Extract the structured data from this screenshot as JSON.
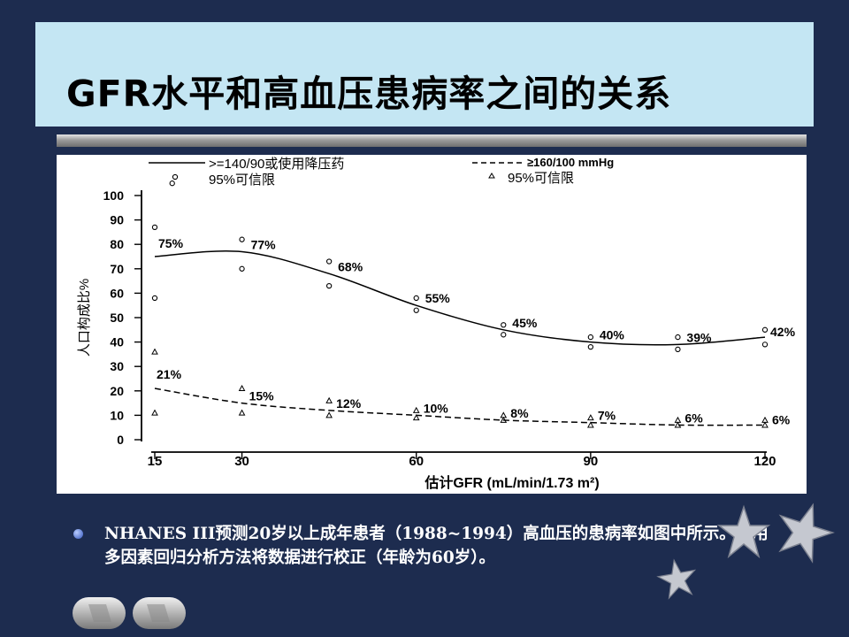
{
  "slide": {
    "title": "GFR水平和高血压患病率之间的关系",
    "bullet": "NHANES III预测20岁以上成年患者（1988~1994）高血压的患病率如图中所示。应用多因素回归分析方法将数据进行校正（年龄为60岁）。"
  },
  "chart_data": {
    "type": "line",
    "xlabel": "估计GFR (mL/min/1.73 m²)",
    "ylabel": "人口构成比%",
    "xticks": [
      15,
      30,
      60,
      90,
      120
    ],
    "yticks": [
      0,
      10,
      20,
      30,
      40,
      50,
      60,
      70,
      80,
      90,
      100
    ],
    "xlim": [
      15,
      120
    ],
    "ylim": [
      0,
      100
    ],
    "legend": [
      {
        "label": ">=140/90或使用降压药",
        "style": "solid"
      },
      {
        "label": "95%可信限",
        "marker": "circle"
      },
      {
        "label": "≥160/100 mmHg",
        "style": "dashed"
      },
      {
        "label": "95%可信限",
        "marker": "triangle"
      }
    ],
    "series": [
      {
        "name": ">=140/90或使用降压药",
        "style": "solid",
        "x": [
          15,
          30,
          45,
          60,
          75,
          90,
          105,
          120
        ],
        "y": [
          75,
          77,
          68,
          55,
          45,
          40,
          39,
          42
        ],
        "labels": [
          "75%",
          "77%",
          "68%",
          "55%",
          "45%",
          "40%",
          "39%",
          "42%"
        ],
        "ci_marker": "circle",
        "ci_upper": [
          87,
          82,
          73,
          58,
          47,
          42,
          42,
          45
        ],
        "ci_lower": [
          58,
          70,
          63,
          53,
          43,
          38,
          37,
          39
        ],
        "extra_points": [
          {
            "x": 18,
            "y": 105
          }
        ]
      },
      {
        "name": "≥160/100 mmHg",
        "style": "dashed",
        "x": [
          15,
          30,
          45,
          60,
          75,
          90,
          105,
          120
        ],
        "y": [
          21,
          15,
          12,
          10,
          8,
          7,
          6,
          6
        ],
        "labels": [
          "21%",
          "15%",
          "12%",
          "10%",
          "8%",
          "7%",
          "6%",
          "6%"
        ],
        "ci_marker": "triangle",
        "ci_upper": [
          36,
          21,
          16,
          12,
          10,
          9,
          8,
          8
        ],
        "ci_lower": [
          11,
          11,
          10,
          9,
          8,
          6,
          6,
          6
        ]
      }
    ]
  },
  "nav": {
    "prev_icon": "prev-arrow-icon",
    "next_icon": "next-arrow-icon"
  }
}
